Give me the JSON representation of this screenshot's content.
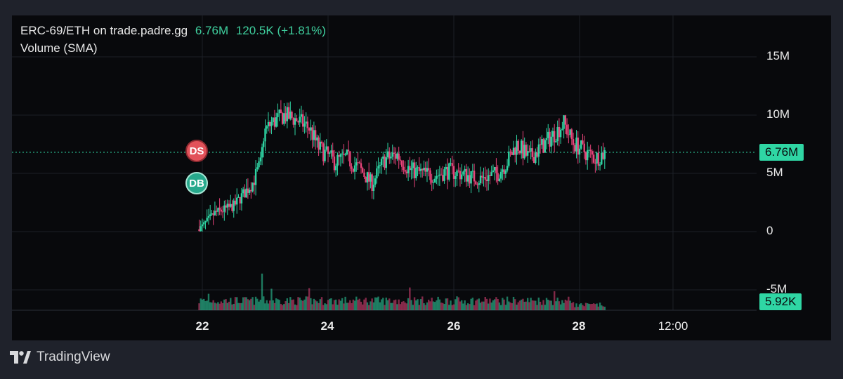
{
  "legend": {
    "symbol": "ERC-69/ETH on trade.padre.gg",
    "last_price": "6.76M",
    "change": "120.5K (+1.81%)",
    "volume_label": "Volume (SMA)"
  },
  "y_axis": {
    "labels": [
      "15M",
      "10M",
      "5M",
      "0",
      "-5M"
    ]
  },
  "x_axis": {
    "labels": [
      "22",
      "24",
      "26",
      "28",
      "12:00"
    ]
  },
  "tags": {
    "price": "6.76M",
    "volume": "5.92K"
  },
  "markers": {
    "ds": "DS",
    "db": "DB"
  },
  "brand": {
    "name": "TradingView",
    "icon": "tradingview-logo-icon"
  },
  "colors": {
    "up": "#2fd6a4",
    "down": "#e8447a",
    "background": "#08090c"
  },
  "chart_data": {
    "type": "candlestick",
    "ylim": [
      -6,
      16
    ],
    "x_range_days": [
      21.85,
      29.7
    ],
    "y_ticks": [
      15,
      10,
      5,
      0,
      -5
    ],
    "x_ticks": [
      22,
      24,
      26,
      28,
      28.5
    ],
    "last_price": 6.76,
    "anchors": [
      [
        21.95,
        0.2
      ],
      [
        22.2,
        1.6
      ],
      [
        22.5,
        2.2
      ],
      [
        22.8,
        4.2
      ],
      [
        22.93,
        5.8
      ],
      [
        22.98,
        8.5
      ],
      [
        23.1,
        9.3
      ],
      [
        23.3,
        10.0
      ],
      [
        23.5,
        9.6
      ],
      [
        23.7,
        8.9
      ],
      [
        23.85,
        7.2
      ],
      [
        24.1,
        6.0
      ],
      [
        24.3,
        6.3
      ],
      [
        24.5,
        5.4
      ],
      [
        24.7,
        4.1
      ],
      [
        24.9,
        6.2
      ],
      [
        25.1,
        6.6
      ],
      [
        25.3,
        5.3
      ],
      [
        25.5,
        5.0
      ],
      [
        25.7,
        4.8
      ],
      [
        25.9,
        5.2
      ],
      [
        26.1,
        5.0
      ],
      [
        26.4,
        4.5
      ],
      [
        26.7,
        5.0
      ],
      [
        26.85,
        6.0
      ],
      [
        27.0,
        7.5
      ],
      [
        27.2,
        6.3
      ],
      [
        27.4,
        7.3
      ],
      [
        27.6,
        8.4
      ],
      [
        27.75,
        9.3
      ],
      [
        27.9,
        7.6
      ],
      [
        28.1,
        6.8
      ],
      [
        28.25,
        6.3
      ],
      [
        28.4,
        6.76
      ]
    ],
    "volume_peaks": [
      [
        22.95,
        5.8
      ],
      [
        23.1,
        3.4
      ],
      [
        23.7,
        3.5
      ],
      [
        25.3,
        3.6
      ],
      [
        27.6,
        3.0
      ],
      [
        22.1,
        2.6
      ]
    ]
  }
}
